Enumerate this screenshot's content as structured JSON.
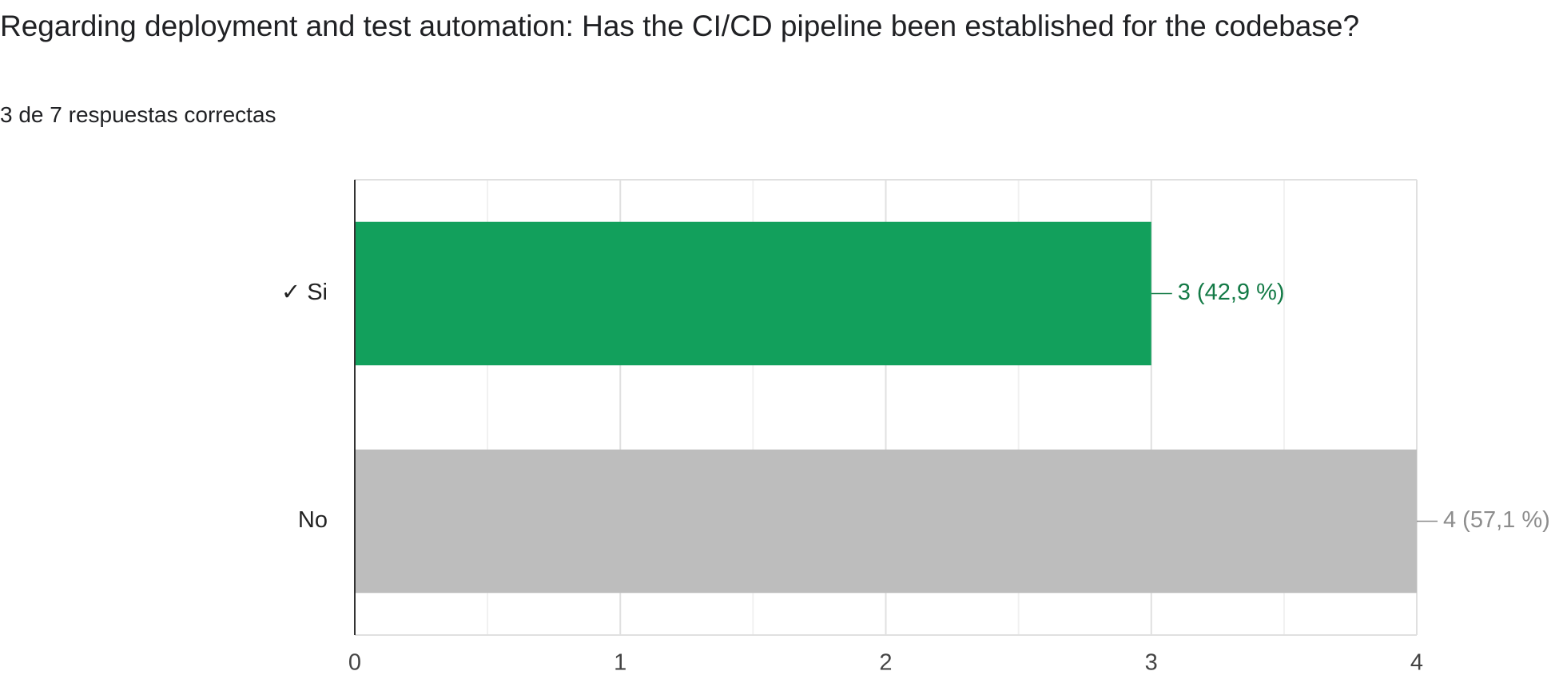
{
  "chart_data": {
    "type": "hbar",
    "title": "Regarding deployment and test automation: Has the CI/CD pipeline been established for the codebase?",
    "subtitle": "3 de 7 respuestas correctas",
    "categories": [
      "✓ Si",
      "No"
    ],
    "values": [
      3,
      4
    ],
    "value_labels": [
      "3 (42,9 %)",
      "4 (57,1 %)"
    ],
    "colors": [
      "#12a05c",
      "#bdbdbd"
    ],
    "label_colors": [
      "#137a46",
      "#8c8c8c"
    ],
    "xlim": [
      0,
      4
    ],
    "xticks": [
      0,
      1,
      2,
      3,
      4
    ],
    "minor_xticks": [
      0.5,
      1.5,
      2.5,
      3.5
    ],
    "grid": true
  }
}
